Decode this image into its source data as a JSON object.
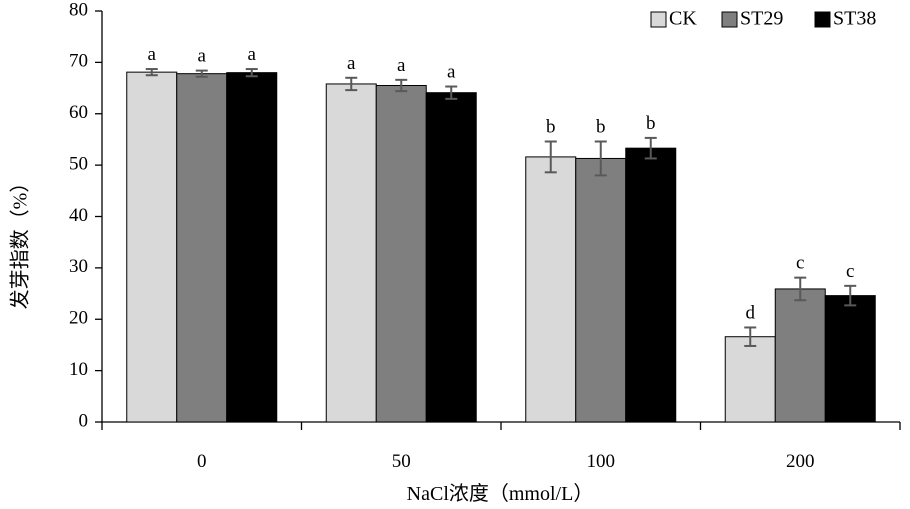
{
  "chart_data": {
    "type": "bar",
    "title": "",
    "xlabel": "NaCl浓度（mmol/L）",
    "ylabel": "发芽指数（%）",
    "ylim": [
      0,
      80
    ],
    "yticks": [
      0,
      10,
      20,
      30,
      40,
      50,
      60,
      70,
      80
    ],
    "categories": [
      "0",
      "50",
      "100",
      "200"
    ],
    "legend_position": "top-right",
    "grid": false,
    "series": [
      {
        "name": "CK",
        "color": "#d9d9d9",
        "values": [
          68.1,
          65.8,
          51.6,
          16.6
        ],
        "errors": [
          0.6,
          1.2,
          3.0,
          1.8
        ],
        "sig": [
          "a",
          "a",
          "b",
          "d"
        ]
      },
      {
        "name": "ST29",
        "color": "#7f7f7f",
        "values": [
          67.8,
          65.5,
          51.3,
          25.9
        ],
        "errors": [
          0.6,
          1.1,
          3.3,
          2.2
        ],
        "sig": [
          "a",
          "a",
          "b",
          "c"
        ]
      },
      {
        "name": "ST38",
        "color": "#000000",
        "values": [
          68.0,
          64.1,
          53.3,
          24.6
        ],
        "errors": [
          0.7,
          1.2,
          2.0,
          1.9
        ],
        "sig": [
          "a",
          "a",
          "b",
          "c"
        ]
      }
    ]
  }
}
